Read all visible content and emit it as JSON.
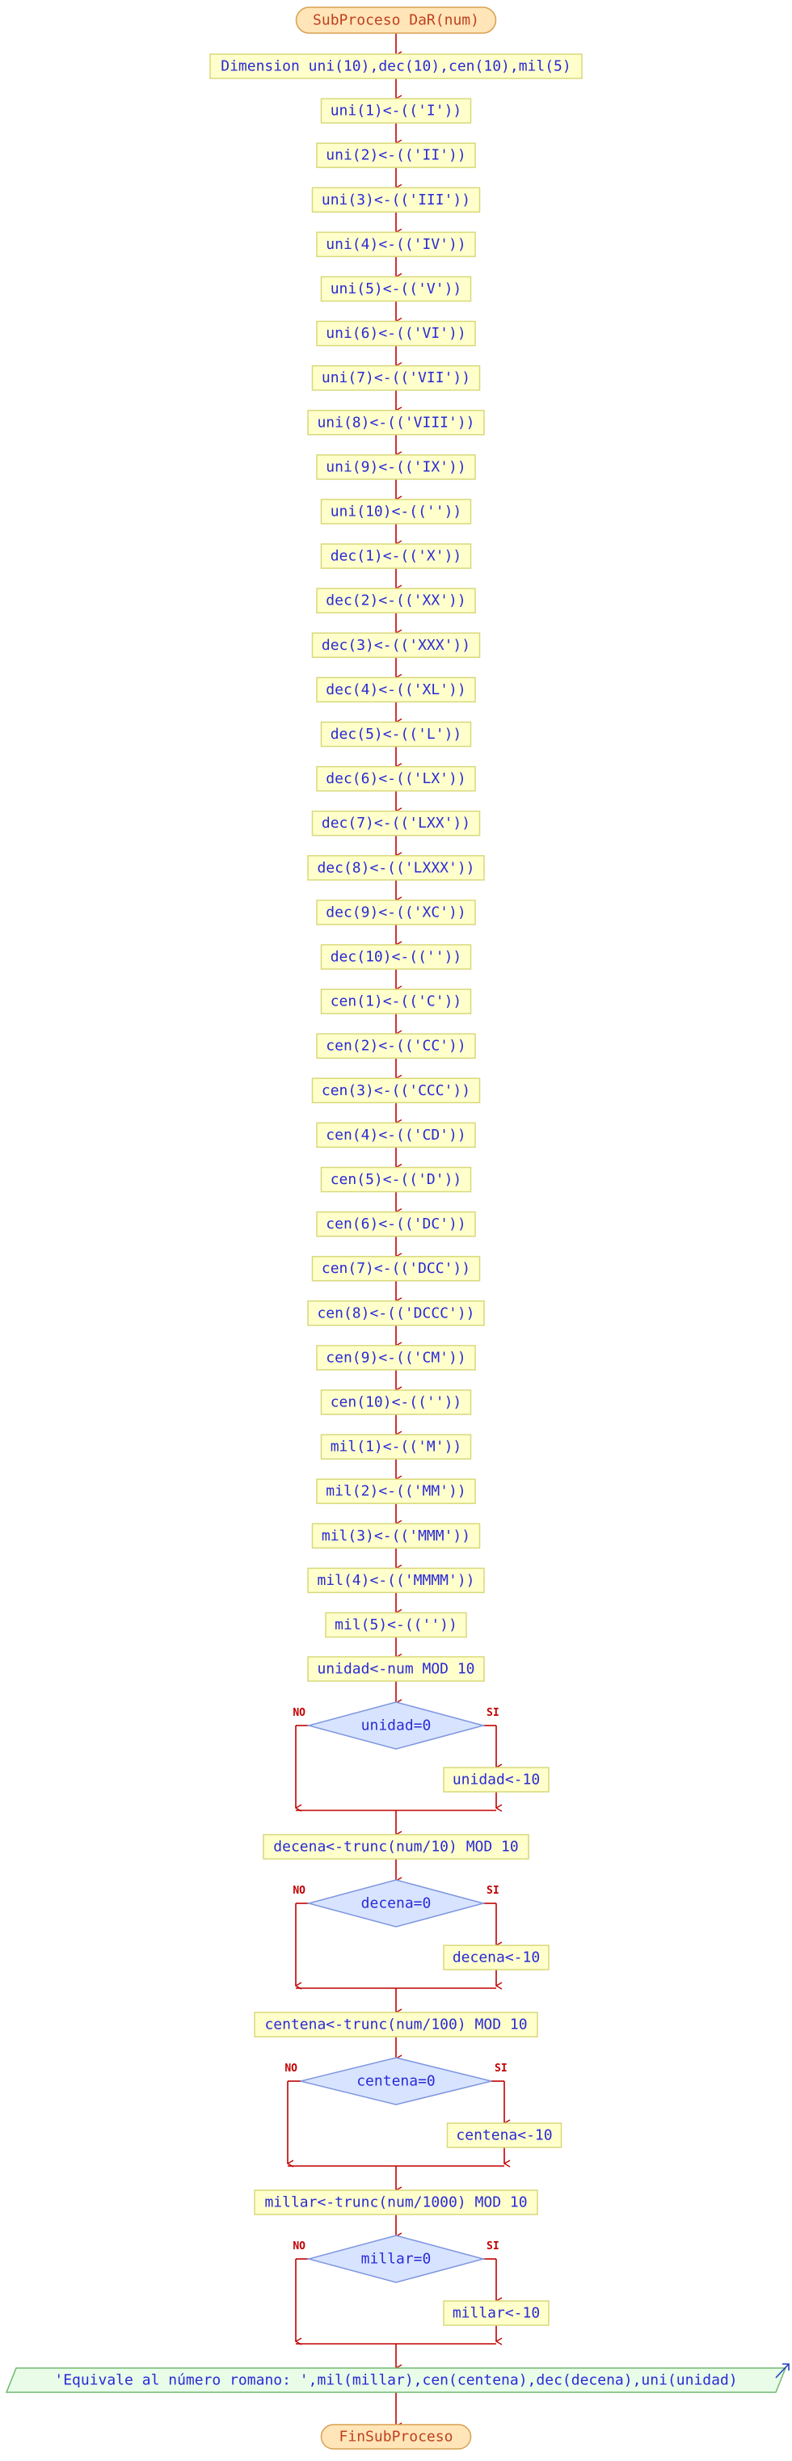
{
  "start": "SubProceso DaR(num)",
  "assignments": [
    "Dimension uni(10),dec(10),cen(10),mil(5)",
    "uni(1)<-(('I'))",
    "uni(2)<-(('II'))",
    "uni(3)<-(('III'))",
    "uni(4)<-(('IV'))",
    "uni(5)<-(('V'))",
    "uni(6)<-(('VI'))",
    "uni(7)<-(('VII'))",
    "uni(8)<-(('VIII'))",
    "uni(9)<-(('IX'))",
    "uni(10)<-((''))",
    "dec(1)<-(('X'))",
    "dec(2)<-(('XX'))",
    "dec(3)<-(('XXX'))",
    "dec(4)<-(('XL'))",
    "dec(5)<-(('L'))",
    "dec(6)<-(('LX'))",
    "dec(7)<-(('LXX'))",
    "dec(8)<-(('LXXX'))",
    "dec(9)<-(('XC'))",
    "dec(10)<-((''))",
    "cen(1)<-(('C'))",
    "cen(2)<-(('CC'))",
    "cen(3)<-(('CCC'))",
    "cen(4)<-(('CD'))",
    "cen(5)<-(('D'))",
    "cen(6)<-(('DC'))",
    "cen(7)<-(('DCC'))",
    "cen(8)<-(('DCCC'))",
    "cen(9)<-(('CM'))",
    "cen(10)<-((''))",
    "mil(1)<-(('M'))",
    "mil(2)<-(('MM'))",
    "mil(3)<-(('MMM'))",
    "mil(4)<-(('MMMM'))",
    "mil(5)<-((''))"
  ],
  "decisions": [
    {
      "compute": "unidad<-num MOD 10",
      "condition": "unidad=0",
      "no": "NO",
      "yes": "SI",
      "yes_action": "unidad<-10"
    },
    {
      "compute": "decena<-trunc(num/10) MOD 10",
      "condition": "decena=0",
      "no": "NO",
      "yes": "SI",
      "yes_action": "decena<-10"
    },
    {
      "compute": "centena<-trunc(num/100) MOD 10",
      "condition": "centena=0",
      "no": "NO",
      "yes": "SI",
      "yes_action": "centena<-10"
    },
    {
      "compute": "millar<-trunc(num/1000) MOD 10",
      "condition": "millar=0",
      "no": "NO",
      "yes": "SI",
      "yes_action": "millar<-10"
    }
  ],
  "output": "'Equivale al número romano: ',mil(millar),cen(centena),dec(decena),uni(unidad)",
  "end": "FinSubProceso",
  "colors": {
    "line": "#c00000",
    "text": "#2a2ad6",
    "terminal_text": "#c04020",
    "process_fill": "#ffffcc",
    "process_stroke": "#d8d87a",
    "terminal_fill": "#ffe5b8",
    "terminal_stroke": "#d8a050",
    "decision_fill": "#d8e4ff",
    "decision_stroke": "#7e96e0",
    "output_fill": "#e8fce8",
    "output_stroke": "#70b870",
    "label_red": "#c00000"
  }
}
